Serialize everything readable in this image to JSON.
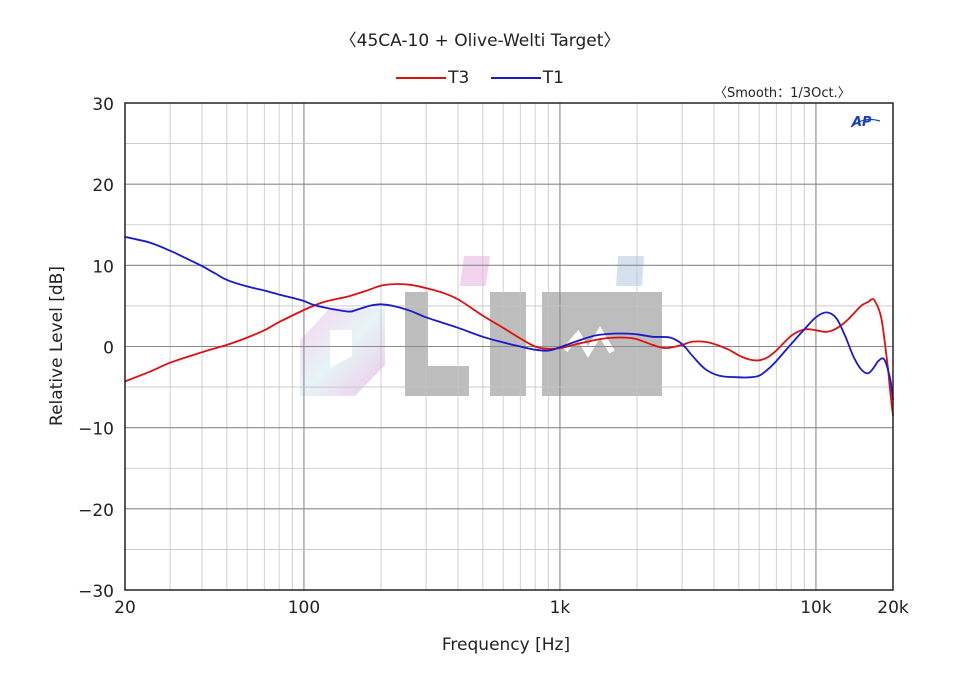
{
  "title": "〈45CA-10 + Olive-Welti Target〉",
  "smoothing": "〈Smooth：1/3Oct.〉",
  "ap_logo": "AP",
  "watermark": "CliHi",
  "chart_data": {
    "type": "line",
    "title": "〈45CA-10 + Olive-Welti Target〉",
    "xlabel": "Frequency [Hz]",
    "ylabel": "Relative Level [dB]",
    "xscale": "log",
    "xlim": [
      20,
      20000
    ],
    "ylim": [
      -30,
      30
    ],
    "grid": true,
    "legend_position": "top-center",
    "x_ticks": [
      {
        "value": 20,
        "label": "20"
      },
      {
        "value": 100,
        "label": "100"
      },
      {
        "value": 1000,
        "label": "1k"
      },
      {
        "value": 10000,
        "label": "10k"
      },
      {
        "value": 20000,
        "label": "20k"
      }
    ],
    "y_ticks": [
      {
        "value": 30,
        "label": "30"
      },
      {
        "value": 20,
        "label": "20"
      },
      {
        "value": 10,
        "label": "10"
      },
      {
        "value": 0,
        "label": "0"
      },
      {
        "value": -10,
        "label": "−10"
      },
      {
        "value": -20,
        "label": "−20"
      },
      {
        "value": -30,
        "label": "−30"
      }
    ],
    "series": [
      {
        "name": "T3",
        "color": "#dd1111",
        "points": [
          [
            20,
            -4.3
          ],
          [
            25,
            -3.1
          ],
          [
            30,
            -2.0
          ],
          [
            40,
            -0.7
          ],
          [
            50,
            0.2
          ],
          [
            60,
            1.1
          ],
          [
            70,
            2.0
          ],
          [
            80,
            3.0
          ],
          [
            100,
            4.5
          ],
          [
            120,
            5.5
          ],
          [
            150,
            6.2
          ],
          [
            180,
            7.0
          ],
          [
            200,
            7.5
          ],
          [
            230,
            7.7
          ],
          [
            260,
            7.6
          ],
          [
            300,
            7.2
          ],
          [
            350,
            6.6
          ],
          [
            400,
            5.8
          ],
          [
            500,
            3.8
          ],
          [
            600,
            2.3
          ],
          [
            700,
            1.0
          ],
          [
            800,
            0.0
          ],
          [
            900,
            -0.3
          ],
          [
            1000,
            -0.2
          ],
          [
            1200,
            0.4
          ],
          [
            1500,
            1.0
          ],
          [
            1800,
            1.1
          ],
          [
            2000,
            0.9
          ],
          [
            2300,
            0.2
          ],
          [
            2600,
            -0.2
          ],
          [
            3000,
            0.2
          ],
          [
            3300,
            0.6
          ],
          [
            3800,
            0.5
          ],
          [
            4500,
            -0.3
          ],
          [
            5000,
            -1.1
          ],
          [
            5500,
            -1.6
          ],
          [
            6000,
            -1.7
          ],
          [
            6500,
            -1.3
          ],
          [
            7000,
            -0.5
          ],
          [
            8000,
            1.3
          ],
          [
            9000,
            2.1
          ],
          [
            10000,
            2.0
          ],
          [
            11000,
            1.8
          ],
          [
            12000,
            2.2
          ],
          [
            13000,
            3.0
          ],
          [
            14000,
            4.0
          ],
          [
            15000,
            5.0
          ],
          [
            16000,
            5.5
          ],
          [
            16500,
            5.8
          ],
          [
            17000,
            5.6
          ],
          [
            18000,
            3.5
          ],
          [
            19000,
            -2.0
          ],
          [
            19500,
            -5.5
          ],
          [
            20000,
            -8.5
          ]
        ]
      },
      {
        "name": "T1",
        "color": "#1a1acc",
        "points": [
          [
            20,
            13.5
          ],
          [
            25,
            12.8
          ],
          [
            30,
            11.8
          ],
          [
            35,
            10.8
          ],
          [
            40,
            9.9
          ],
          [
            45,
            9.0
          ],
          [
            50,
            8.2
          ],
          [
            60,
            7.4
          ],
          [
            70,
            6.9
          ],
          [
            80,
            6.4
          ],
          [
            90,
            6.0
          ],
          [
            100,
            5.6
          ],
          [
            110,
            5.1
          ],
          [
            130,
            4.6
          ],
          [
            150,
            4.3
          ],
          [
            160,
            4.5
          ],
          [
            180,
            5.0
          ],
          [
            200,
            5.2
          ],
          [
            230,
            4.9
          ],
          [
            260,
            4.4
          ],
          [
            300,
            3.6
          ],
          [
            350,
            2.9
          ],
          [
            400,
            2.3
          ],
          [
            500,
            1.2
          ],
          [
            600,
            0.5
          ],
          [
            700,
            0.0
          ],
          [
            800,
            -0.4
          ],
          [
            900,
            -0.5
          ],
          [
            1000,
            -0.1
          ],
          [
            1200,
            0.8
          ],
          [
            1400,
            1.4
          ],
          [
            1700,
            1.6
          ],
          [
            2000,
            1.5
          ],
          [
            2300,
            1.2
          ],
          [
            2700,
            1.1
          ],
          [
            3000,
            0.3
          ],
          [
            3300,
            -1.2
          ],
          [
            3700,
            -2.8
          ],
          [
            4200,
            -3.6
          ],
          [
            5000,
            -3.8
          ],
          [
            5500,
            -3.8
          ],
          [
            6000,
            -3.6
          ],
          [
            6500,
            -2.8
          ],
          [
            7000,
            -1.8
          ],
          [
            8000,
            0.3
          ],
          [
            9000,
            2.1
          ],
          [
            10000,
            3.6
          ],
          [
            11000,
            4.2
          ],
          [
            12000,
            3.5
          ],
          [
            13000,
            1.3
          ],
          [
            14000,
            -1.2
          ],
          [
            15000,
            -2.8
          ],
          [
            16000,
            -3.3
          ],
          [
            17000,
            -2.4
          ],
          [
            17500,
            -1.8
          ],
          [
            18500,
            -1.6
          ],
          [
            19500,
            -4.0
          ],
          [
            20000,
            -6.5
          ]
        ]
      }
    ]
  }
}
